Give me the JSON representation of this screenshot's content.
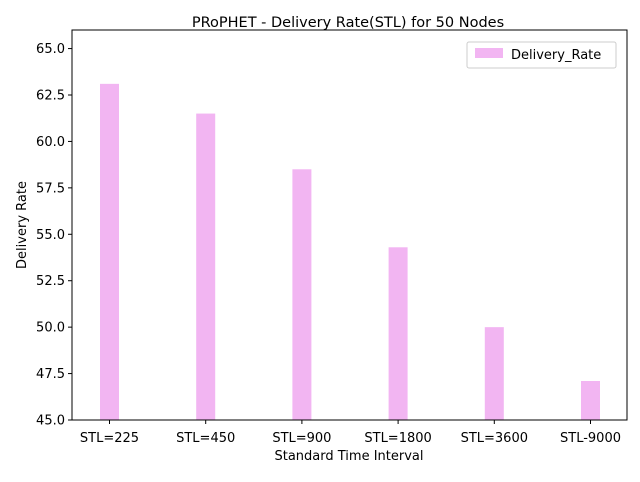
{
  "chart_data": {
    "type": "bar",
    "title": "PRoPHET - Delivery Rate(STL) for 50 Nodes",
    "xlabel": "Standard Time Interval",
    "ylabel": "Delivery Rate",
    "categories": [
      "STL=225",
      "STL=450",
      "STL=900",
      "STL=1800",
      "STL=3600",
      "STL-9000"
    ],
    "series": [
      {
        "name": "Delivery_Rate",
        "values": [
          63.1,
          61.5,
          58.5,
          54.3,
          50.0,
          47.1
        ],
        "color": "#f2b5f2"
      }
    ],
    "ylim": [
      45.0,
      66.0
    ],
    "yticks": [
      "45.0",
      "47.5",
      "50.0",
      "52.5",
      "55.0",
      "57.5",
      "60.0",
      "62.5",
      "65.0"
    ],
    "grid": false,
    "legend_position": "top-right"
  }
}
